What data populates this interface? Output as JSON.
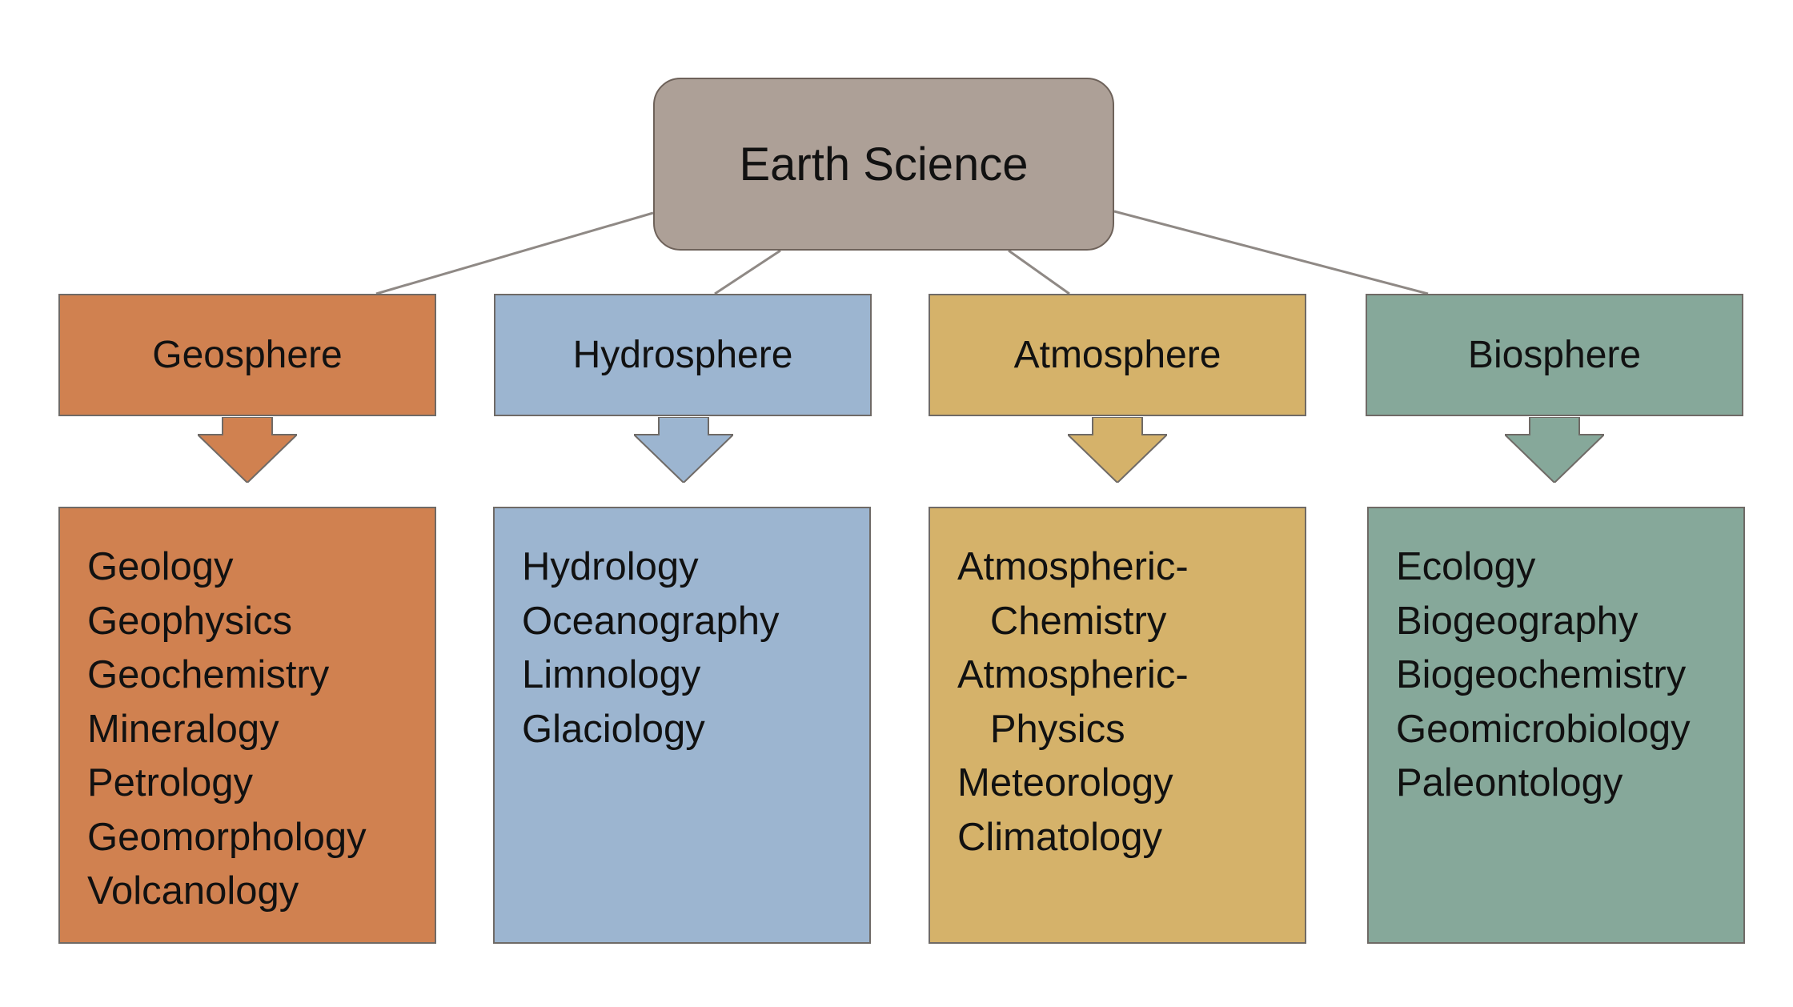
{
  "root": {
    "label": "Earth Science",
    "color": "#ada097"
  },
  "categories": [
    {
      "label": "Geosphere",
      "color": "#d08150",
      "items": [
        "Geology",
        "Geophysics",
        "Geochemistry",
        "Mineralogy",
        "Petrology",
        "Geomorphology",
        "Volcanology"
      ]
    },
    {
      "label": "Hydrosphere",
      "color": "#9cb5d0",
      "items": [
        "Hydrology",
        "Oceanography",
        "Limnology",
        "Glaciology"
      ]
    },
    {
      "label": "Atmosphere",
      "color": "#d5b26a",
      "items": [
        "Atmospheric-",
        "   Chemistry",
        "Atmospheric-",
        "   Physics",
        "Meteorology",
        "Climatology"
      ]
    },
    {
      "label": "Biosphere",
      "color": "#86a89a",
      "items": [
        "Ecology",
        "Biogeography",
        "Biogeochemistry",
        "Geomicrobiology",
        "Paleontology"
      ]
    }
  ],
  "connector_color": "#8f8985"
}
